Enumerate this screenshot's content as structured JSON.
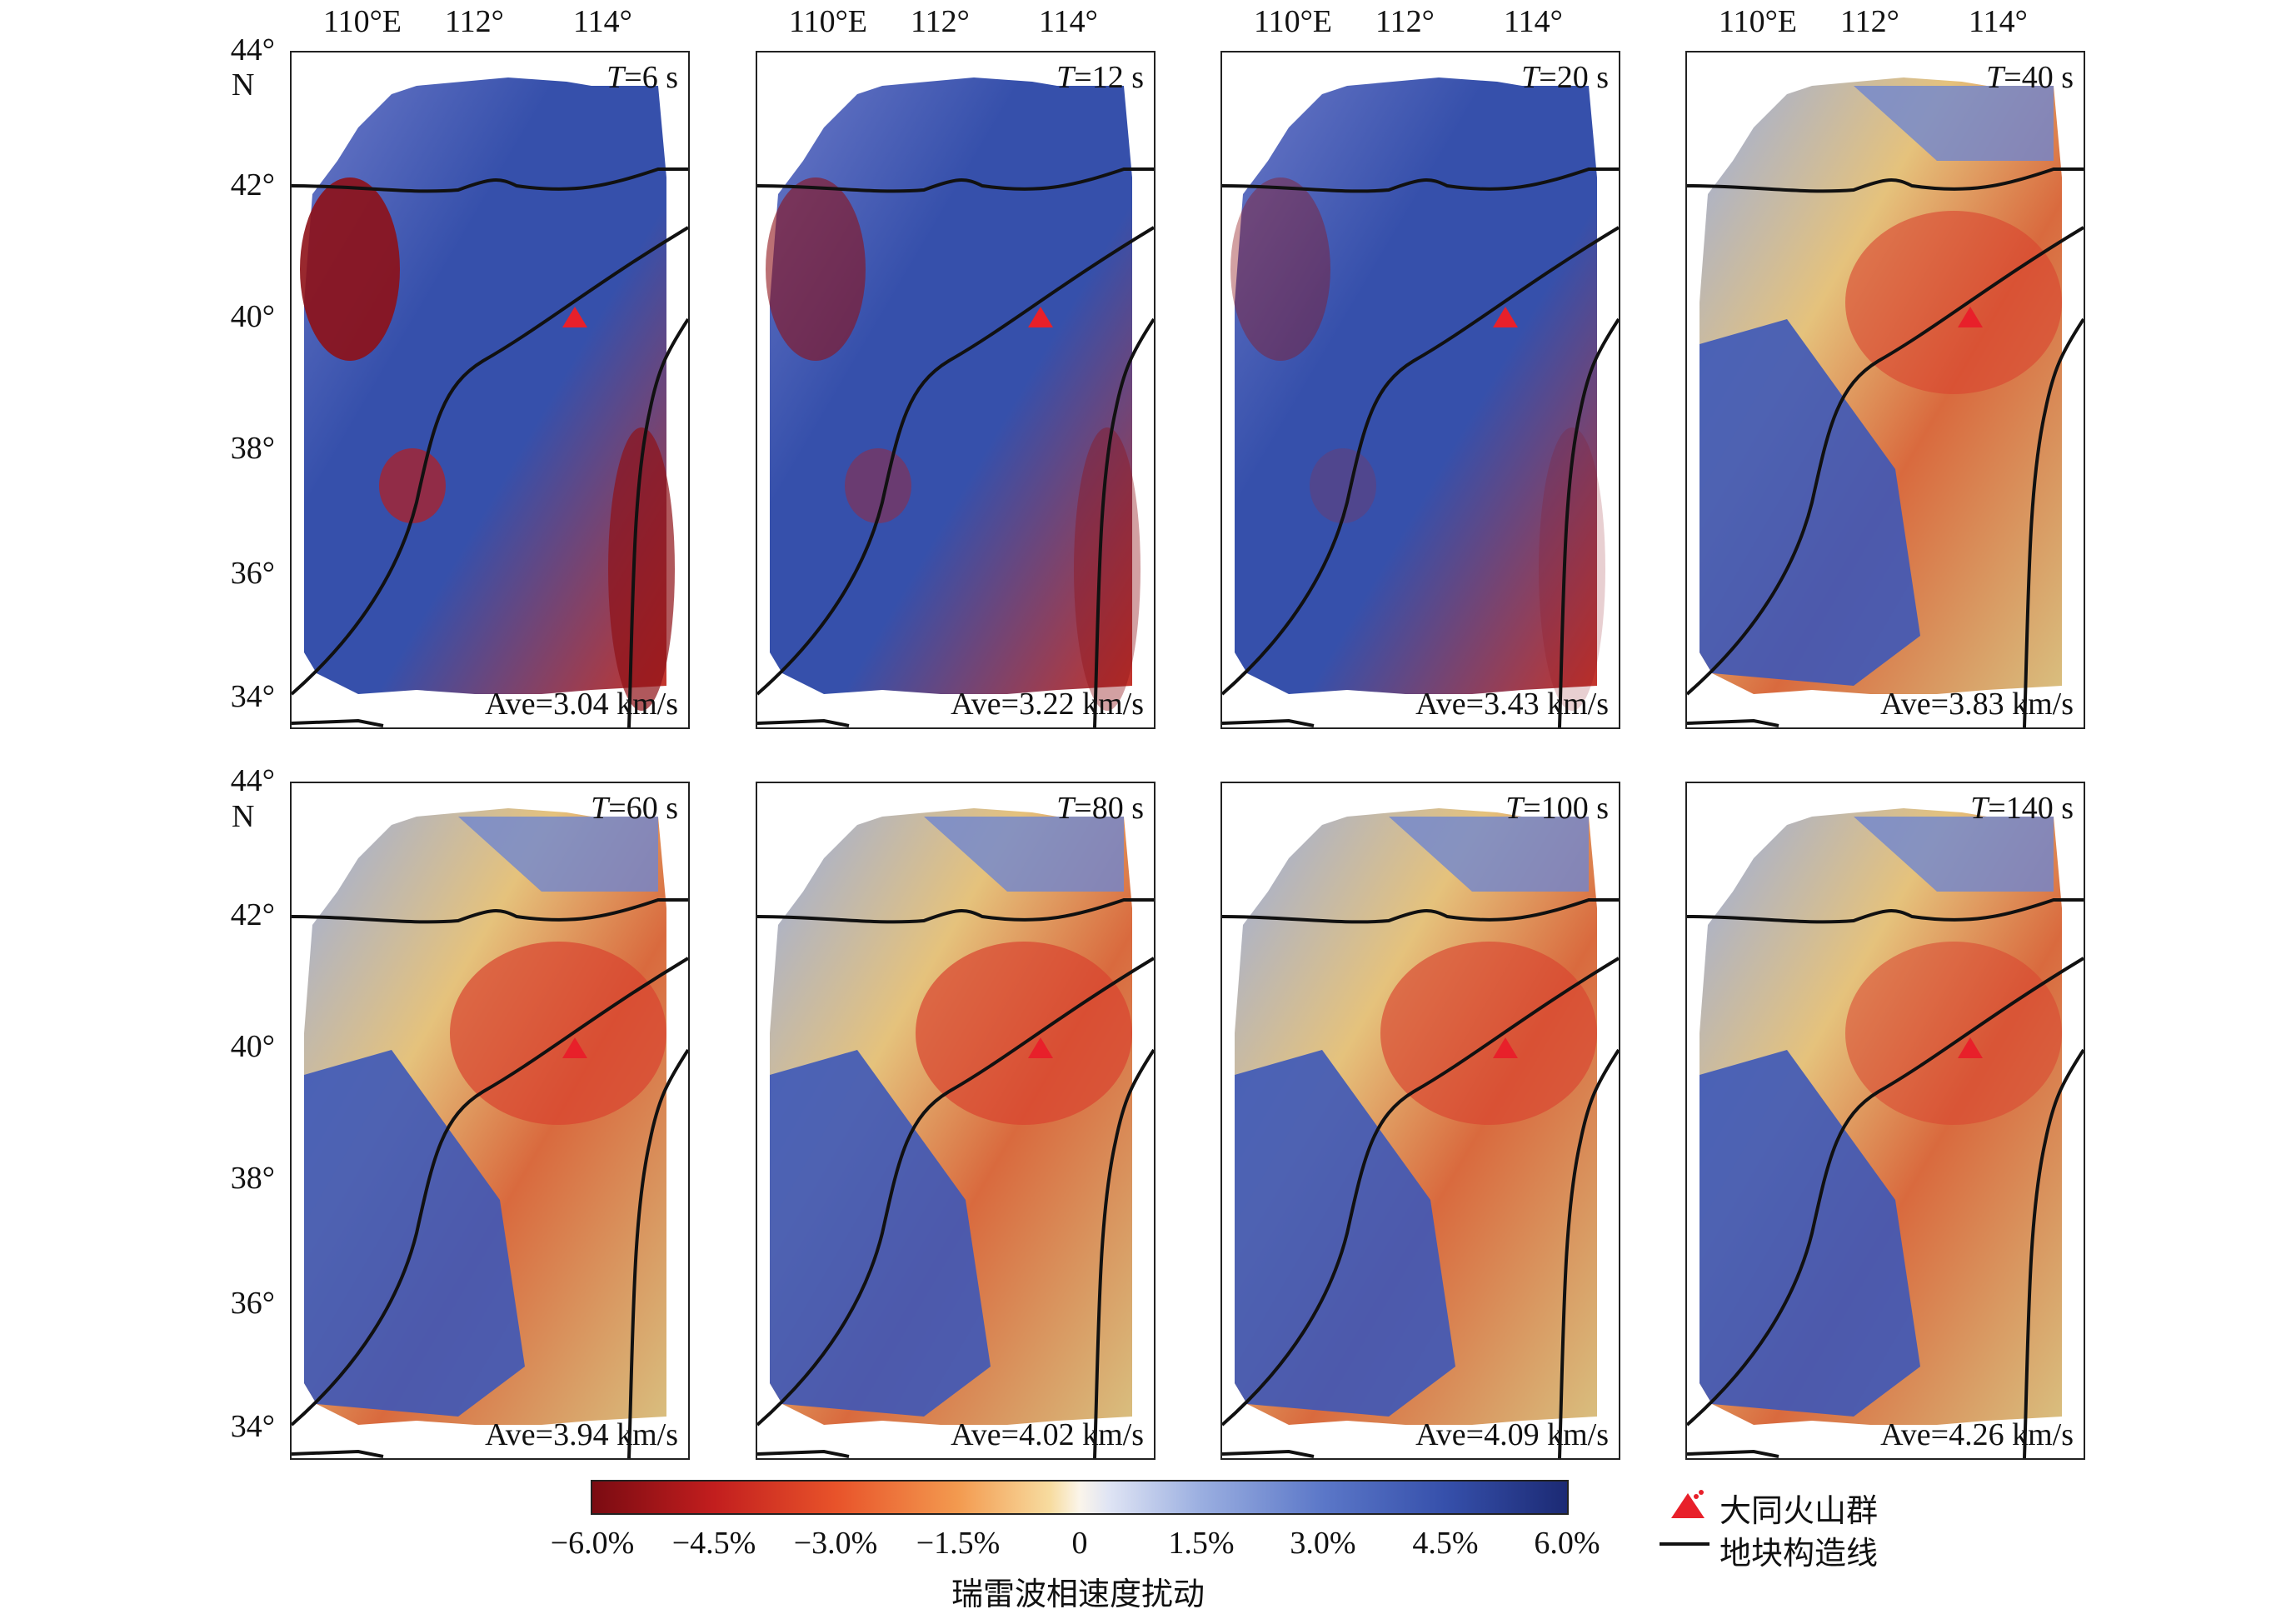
{
  "panels": [
    {
      "period_value": "=6 s",
      "ave": "Ave=3.04 km/s",
      "perturbation_level": -0.7
    },
    {
      "period_value": "=12 s",
      "ave": "Ave=3.22 km/s",
      "perturbation_level": -0.4
    },
    {
      "period_value": "=20 s",
      "ave": "Ave=3.43 km/s",
      "perturbation_level": -0.2
    },
    {
      "period_value": "=40 s",
      "ave": "Ave=3.83 km/s",
      "perturbation_level": 0.2
    },
    {
      "period_value": "=60 s",
      "ave": "Ave=3.94 km/s",
      "perturbation_level": 0.3
    },
    {
      "period_value": "=80 s",
      "ave": "Ave=4.02 km/s",
      "perturbation_level": 0.3
    },
    {
      "period_value": "=100 s",
      "ave": "Ave=4.09 km/s",
      "perturbation_level": 0.25
    },
    {
      "period_value": "=140 s",
      "ave": "Ave=4.26 km/s",
      "perturbation_level": 0.15
    }
  ],
  "period_symbol": "T",
  "lon_labels": [
    "110°E",
    "112°",
    "114°"
  ],
  "lat_labels": [
    "44°",
    "42°",
    "40°",
    "38°",
    "36°",
    "34°"
  ],
  "n_label": "N",
  "colorbar": {
    "ticks": [
      "−6.0%",
      "−4.5%",
      "−3.0%",
      "−1.5%",
      "0",
      "1.5%",
      "3.0%",
      "4.5%",
      "6.0%"
    ],
    "title": "瑞雷波相速度扰动"
  },
  "legend": {
    "volcano_label": "大同火山群",
    "boundary_label": "地块构造线"
  },
  "colors": {
    "volcano": "#e8202a",
    "boundary": "#111111",
    "slow": "#c21e1e",
    "fast": "#3650ab"
  }
}
